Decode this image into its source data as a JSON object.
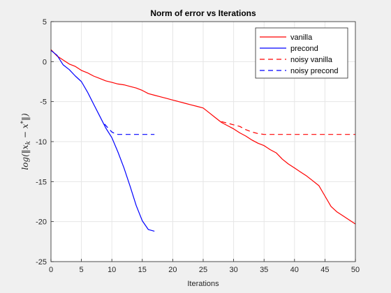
{
  "chart_data": {
    "type": "line",
    "title": "Norm of error vs Iterations",
    "xlabel": "Iterations",
    "ylabel": "log(‖x_k − x*‖)",
    "xlim": [
      0,
      50
    ],
    "ylim": [
      -25,
      5
    ],
    "xticks": [
      0,
      5,
      10,
      15,
      20,
      25,
      30,
      35,
      40,
      45,
      50
    ],
    "yticks": [
      5,
      0,
      -5,
      -10,
      -15,
      -20,
      -25
    ],
    "grid": true,
    "legend_position": "top-right",
    "series": [
      {
        "name": "vanilla",
        "color": "#ff0000",
        "dash": "solid",
        "x": [
          0,
          1,
          2,
          3,
          4,
          5,
          6,
          7,
          8,
          9,
          10,
          11,
          12,
          13,
          14,
          15,
          16,
          17,
          18,
          19,
          20,
          21,
          22,
          23,
          24,
          25,
          26,
          27,
          28,
          29,
          30,
          31,
          32,
          33,
          34,
          35,
          36,
          37,
          38,
          39,
          40,
          41,
          42,
          43,
          44,
          45,
          46,
          47,
          48,
          49,
          50
        ],
        "y": [
          1.5,
          0.7,
          0.2,
          -0.3,
          -0.6,
          -1.1,
          -1.4,
          -1.8,
          -2.1,
          -2.4,
          -2.6,
          -2.8,
          -2.9,
          -3.1,
          -3.3,
          -3.6,
          -4.0,
          -4.2,
          -4.4,
          -4.6,
          -4.8,
          -5.0,
          -5.2,
          -5.4,
          -5.6,
          -5.8,
          -6.4,
          -7.0,
          -7.6,
          -8.0,
          -8.4,
          -8.9,
          -9.3,
          -9.8,
          -10.2,
          -10.5,
          -11.0,
          -11.4,
          -12.2,
          -12.8,
          -13.3,
          -13.8,
          -14.3,
          -14.9,
          -15.5,
          -16.8,
          -18.1,
          -18.8,
          -19.3,
          -19.8,
          -20.3
        ]
      },
      {
        "name": "precond",
        "color": "#0000ff",
        "dash": "solid",
        "x": [
          0,
          1,
          2,
          3,
          4,
          5,
          6,
          7,
          8,
          9,
          10,
          11,
          12,
          13,
          14,
          15,
          16,
          17
        ],
        "y": [
          1.4,
          0.8,
          -0.4,
          -1.0,
          -1.8,
          -2.5,
          -3.8,
          -5.3,
          -6.8,
          -8.3,
          -9.5,
          -11.3,
          -13.3,
          -15.6,
          -18.0,
          -19.9,
          -21.0,
          -21.2
        ]
      },
      {
        "name": "noisy vanilla",
        "color": "#ff0000",
        "dash": "dashed",
        "x": [
          28,
          29,
          30,
          31,
          32,
          33,
          34,
          35,
          36,
          38,
          40,
          42,
          44,
          46,
          48,
          50
        ],
        "y": [
          -7.5,
          -7.7,
          -7.9,
          -8.1,
          -8.5,
          -8.8,
          -9.0,
          -9.1,
          -9.1,
          -9.1,
          -9.1,
          -9.1,
          -9.1,
          -9.1,
          -9.1,
          -9.1
        ]
      },
      {
        "name": "noisy precond",
        "color": "#0000ff",
        "dash": "dashed",
        "x": [
          8.8,
          9.5,
          10,
          10.5,
          11,
          12,
          13,
          14,
          15,
          16,
          17
        ],
        "y": [
          -7.8,
          -8.4,
          -8.8,
          -9.0,
          -9.1,
          -9.1,
          -9.1,
          -9.1,
          -9.1,
          -9.1,
          -9.1
        ]
      }
    ]
  }
}
